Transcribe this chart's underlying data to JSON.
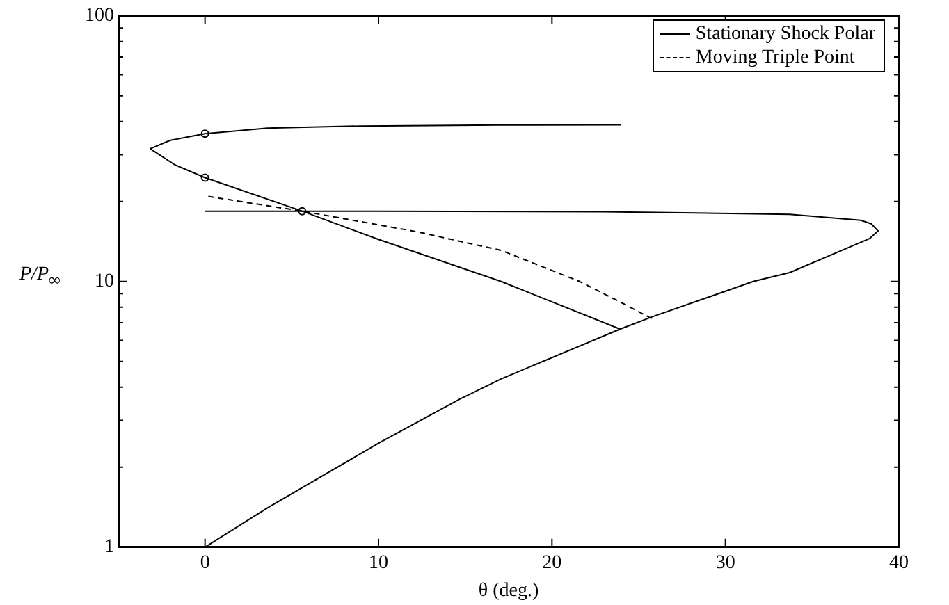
{
  "chart_data": {
    "type": "line",
    "xlabel": "θ (deg.)",
    "ylabel": "P/P$_{∞}$",
    "log": "y",
    "grid": false,
    "legend": "top right",
    "xlim": [
      -5,
      40
    ],
    "xticks": [
      0,
      10,
      20,
      30,
      40
    ],
    "ylim": [
      1,
      100
    ],
    "yticks": [
      1,
      {
        "value": 2,
        "label": null
      },
      {
        "value": 3,
        "label": null
      },
      {
        "value": 4,
        "label": null
      },
      {
        "value": 5,
        "label": null
      },
      {
        "value": 6,
        "label": null
      },
      {
        "value": 7,
        "label": null
      },
      {
        "value": 8,
        "label": null
      },
      {
        "value": 9,
        "label": null
      },
      10,
      {
        "value": 20,
        "label": null
      },
      {
        "value": 30,
        "label": null
      },
      {
        "value": 40,
        "label": null
      },
      {
        "value": 50,
        "label": null
      },
      {
        "value": 60,
        "label": null
      },
      {
        "value": 70,
        "label": null
      },
      {
        "value": 80,
        "label": null
      },
      {
        "value": 90,
        "label": null
      },
      100
    ],
    "series": [
      {
        "name": "Stationary Shock Polar",
        "type": "line",
        "line_style": "solid",
        "color": "#000000",
        "x": [
          24,
          17,
          9,
          3.6,
          0,
          -2,
          -3.16,
          -1.74,
          0,
          5.6,
          10,
          17.07,
          23.93
        ],
        "values": [
          38.9,
          38.8,
          38.5,
          37.8,
          36,
          34,
          31.6,
          27.5,
          24.6,
          18.4,
          14.4,
          10,
          6.62
        ]
      },
      {
        "type": "line",
        "line_style": "solid",
        "color": "#000000",
        "x": [
          0,
          3.63,
          10,
          14.65,
          17.07,
          23.93,
          25.8,
          31.6,
          33.7,
          38.3,
          38.8,
          38.4,
          37.8,
          33.7,
          23,
          10,
          0
        ],
        "values": [
          1,
          1.41,
          2.46,
          3.6,
          4.3,
          6.62,
          7.37,
          10,
          10.8,
          14.5,
          15.5,
          16.5,
          17,
          17.9,
          18.3,
          18.4,
          18.4
        ]
      },
      {
        "name": "Moving Triple Point",
        "type": "line",
        "line_style": "dashed",
        "color": "#000000",
        "x": [
          0.19,
          5.6,
          12.2,
          17.07,
          21.6,
          24.3,
          25.8
        ],
        "values": [
          20.9,
          18.4,
          15.4,
          13.1,
          10,
          8.14,
          7.22
        ]
      },
      {
        "type": "scatter",
        "marker": "circle",
        "color": "#000000",
        "x": [
          0,
          0,
          5.6
        ],
        "values": [
          36,
          24.6,
          18.4
        ]
      }
    ]
  }
}
